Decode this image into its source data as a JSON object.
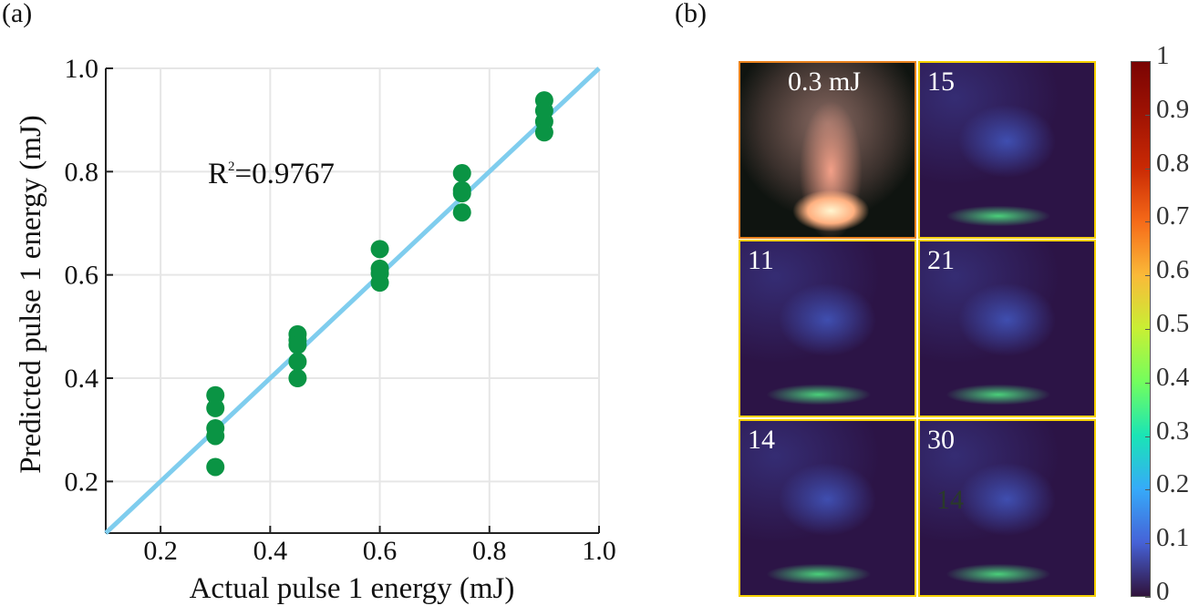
{
  "panel_labels": {
    "a": "(a)",
    "b": "(b)"
  },
  "chart_data": [
    {
      "type": "scatter",
      "title": "",
      "xlabel": "Actual pulse 1 energy (mJ)",
      "ylabel": "Predicted pulse 1 energy (mJ)",
      "xlim": [
        0.1,
        1.0
      ],
      "ylim": [
        0.1,
        1.0
      ],
      "xticks": [
        "0.2",
        "0.4",
        "0.6",
        "0.8",
        "1.0"
      ],
      "yticks": [
        "0.2",
        "0.4",
        "0.6",
        "0.8",
        "1.0"
      ],
      "grid": true,
      "annotation": {
        "text": "R",
        "sup": "2",
        "rest": "=0.9767"
      },
      "fit_line": {
        "x": [
          0.1,
          1.0
        ],
        "y": [
          0.1,
          1.0
        ],
        "color": "#7fcdee"
      },
      "series": [
        {
          "name": "predictions",
          "color": "#0a9444",
          "x": [
            0.3,
            0.3,
            0.3,
            0.3,
            0.3,
            0.45,
            0.45,
            0.45,
            0.45,
            0.45,
            0.6,
            0.6,
            0.6,
            0.6,
            0.75,
            0.75,
            0.75,
            0.75,
            0.9,
            0.9,
            0.9,
            0.9
          ],
          "y": [
            0.367,
            0.342,
            0.303,
            0.288,
            0.228,
            0.485,
            0.474,
            0.464,
            0.432,
            0.4,
            0.65,
            0.612,
            0.603,
            0.585,
            0.797,
            0.764,
            0.758,
            0.721,
            0.938,
            0.918,
            0.897,
            0.876
          ]
        }
      ]
    },
    {
      "type": "heatmap",
      "panels": [
        {
          "label": "0.3 mJ",
          "kind": "photo"
        },
        {
          "label": "15",
          "kind": "map"
        },
        {
          "label": "11",
          "kind": "map"
        },
        {
          "label": "21",
          "kind": "map"
        },
        {
          "label": "14",
          "kind": "map"
        },
        {
          "label": "30",
          "kind": "map",
          "overlay": "14"
        }
      ],
      "colorbar": {
        "range": [
          0,
          1
        ],
        "ticks": [
          "0",
          "0.1",
          "0.2",
          "0.3",
          "0.4",
          "0.5",
          "0.6",
          "0.7",
          "0.8",
          "0.9",
          "1"
        ],
        "colors": [
          "#30123b",
          "#4662d7",
          "#36aaf9",
          "#1ae4b6",
          "#72fe5e",
          "#c8ef34",
          "#faba39",
          "#f66b19",
          "#ca2a04",
          "#a01303",
          "#7a0403"
        ]
      }
    }
  ]
}
